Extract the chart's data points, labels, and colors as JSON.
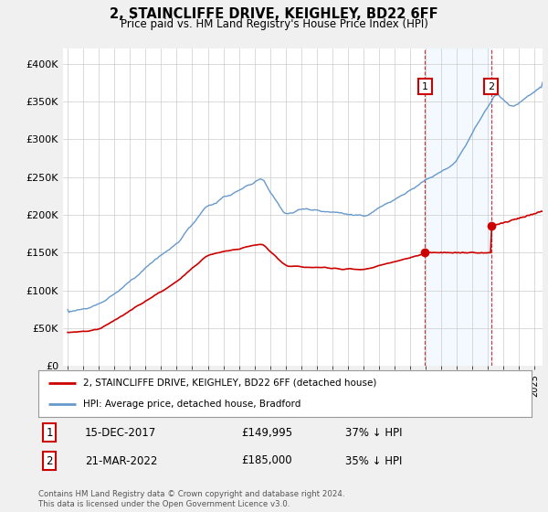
{
  "title": "2, STAINCLIFFE DRIVE, KEIGHLEY, BD22 6FF",
  "subtitle": "Price paid vs. HM Land Registry's House Price Index (HPI)",
  "ylabel_ticks": [
    "£0",
    "£50K",
    "£100K",
    "£150K",
    "£200K",
    "£250K",
    "£300K",
    "£350K",
    "£400K"
  ],
  "ytick_values": [
    0,
    50000,
    100000,
    150000,
    200000,
    250000,
    300000,
    350000,
    400000
  ],
  "ylim": [
    0,
    420000
  ],
  "hpi_color": "#6699cc",
  "price_color": "#cc0000",
  "sale1_x": 2017.958,
  "sale1_price": 149995,
  "sale1_date": "15-DEC-2017",
  "sale1_pct": "37% ↓ HPI",
  "sale2_x": 2022.208,
  "sale2_price": 185000,
  "sale2_date": "21-MAR-2022",
  "sale2_pct": "35% ↓ HPI",
  "legend_label1": "2, STAINCLIFFE DRIVE, KEIGHLEY, BD22 6FF (detached house)",
  "legend_label2": "HPI: Average price, detached house, Bradford",
  "footnote": "Contains HM Land Registry data © Crown copyright and database right 2024.\nThis data is licensed under the Open Government Licence v3.0.",
  "background_color": "#f0f0f0",
  "plot_bg_color": "#ffffff",
  "grid_color": "#cccccc",
  "shade_color": "#ddeeff",
  "xmin": 1995.0,
  "xmax": 2025.5
}
